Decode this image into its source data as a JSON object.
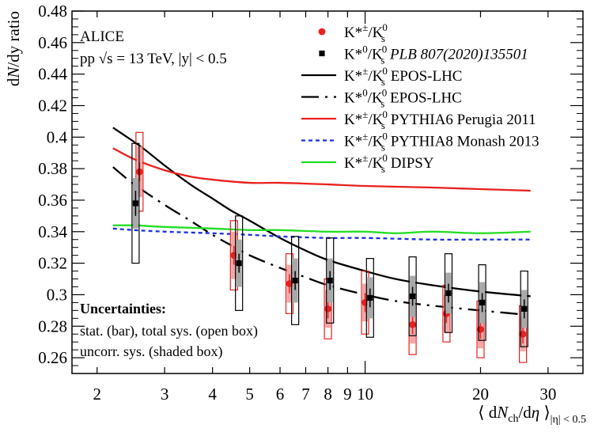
{
  "chart_data": {
    "type": "scatter",
    "xscale": "log",
    "xlim": [
      1.72,
      37.0
    ],
    "ylim": [
      0.25,
      0.48
    ],
    "ylabel": "dN/dy ratio",
    "xlabel": {
      "main": "⟨ dN",
      "sub1": "ch",
      "mid": "/dη ⟩",
      "sub2": "|η| < 0.5"
    },
    "xticks": [
      {
        "v": 2,
        "label": "2"
      },
      {
        "v": 3,
        "label": "3"
      },
      {
        "v": 4,
        "label": "4"
      },
      {
        "v": 5,
        "label": "5"
      },
      {
        "v": 6,
        "label": "6"
      },
      {
        "v": 7,
        "label": "7"
      },
      {
        "v": 8,
        "label": "8"
      },
      {
        "v": 9,
        "label": "9"
      },
      {
        "v": 10,
        "label": "10"
      },
      {
        "v": 20,
        "label": "20"
      },
      {
        "v": 30,
        "label": "30"
      }
    ],
    "xminor_ticks": [
      2,
      3,
      4,
      5,
      6,
      7,
      8,
      9,
      10,
      20,
      30
    ],
    "yticks": [
      0.26,
      0.28,
      0.3,
      0.32,
      0.34,
      0.36,
      0.38,
      0.4,
      0.42,
      0.44,
      0.46,
      0.48
    ],
    "ytick_labels": [
      "0.26",
      "0.28",
      "0.3",
      "0.32",
      "0.34",
      "0.36",
      "0.38",
      "0.4",
      "0.42",
      "0.44",
      "0.46",
      "0.48"
    ],
    "annotations": {
      "experiment": "ALICE",
      "system": "pp  √s = 13 TeV, |y| < 0.5",
      "unc_title": "Uncertainties:",
      "unc_line1": "stat. (bar), total sys. (open box)",
      "unc_line2": "uncorr. sys. (shaded box)"
    },
    "series": [
      {
        "name": "K*±/K0S",
        "kind": "data",
        "marker": "circle",
        "color": "#e8211f",
        "points": [
          {
            "x": 2.58,
            "y": 0.378,
            "stat": 0.006,
            "sys": 0.025,
            "unc": 0.016
          },
          {
            "x": 4.55,
            "y": 0.325,
            "stat": 0.006,
            "sys": 0.022,
            "unc": 0.015
          },
          {
            "x": 6.35,
            "y": 0.307,
            "stat": 0.006,
            "sys": 0.019,
            "unc": 0.012
          },
          {
            "x": 8.0,
            "y": 0.291,
            "stat": 0.006,
            "sys": 0.019,
            "unc": 0.012
          },
          {
            "x": 10.0,
            "y": 0.295,
            "stat": 0.006,
            "sys": 0.02,
            "unc": 0.012
          },
          {
            "x": 13.3,
            "y": 0.281,
            "stat": 0.006,
            "sys": 0.019,
            "unc": 0.012
          },
          {
            "x": 16.3,
            "y": 0.288,
            "stat": 0.006,
            "sys": 0.018,
            "unc": 0.012
          },
          {
            "x": 20.0,
            "y": 0.278,
            "stat": 0.006,
            "sys": 0.018,
            "unc": 0.012
          },
          {
            "x": 25.8,
            "y": 0.275,
            "stat": 0.006,
            "sys": 0.018,
            "unc": 0.011
          }
        ]
      },
      {
        "name": "K*0/K0S",
        "reference": "PLB 807(2020)135501",
        "kind": "data",
        "marker": "square",
        "color": "#000000",
        "points": [
          {
            "x": 2.52,
            "y": 0.358,
            "stat": 0.008,
            "sys": 0.038,
            "unc": 0.016
          },
          {
            "x": 4.69,
            "y": 0.32,
            "stat": 0.006,
            "sys": 0.03,
            "unc": 0.015
          },
          {
            "x": 6.57,
            "y": 0.309,
            "stat": 0.006,
            "sys": 0.028,
            "unc": 0.014
          },
          {
            "x": 8.1,
            "y": 0.309,
            "stat": 0.006,
            "sys": 0.027,
            "unc": 0.014
          },
          {
            "x": 10.3,
            "y": 0.298,
            "stat": 0.006,
            "sys": 0.025,
            "unc": 0.013
          },
          {
            "x": 13.3,
            "y": 0.299,
            "stat": 0.006,
            "sys": 0.025,
            "unc": 0.013
          },
          {
            "x": 16.5,
            "y": 0.301,
            "stat": 0.006,
            "sys": 0.025,
            "unc": 0.013
          },
          {
            "x": 20.2,
            "y": 0.295,
            "stat": 0.006,
            "sys": 0.024,
            "unc": 0.013
          },
          {
            "x": 26.0,
            "y": 0.291,
            "stat": 0.006,
            "sys": 0.024,
            "unc": 0.012
          }
        ]
      },
      {
        "name": "K*±/K0S EPOS-LHC",
        "kind": "curve",
        "color": "#000000",
        "dash": "solid",
        "x": [
          2.2,
          2.6,
          3.0,
          3.5,
          4.0,
          4.5,
          5.0,
          6.0,
          7.0,
          8.0,
          10.0,
          12.0,
          15.0,
          20.0,
          27.0
        ],
        "y": [
          0.406,
          0.394,
          0.382,
          0.37,
          0.361,
          0.353,
          0.347,
          0.336,
          0.328,
          0.322,
          0.315,
          0.31,
          0.306,
          0.302,
          0.299
        ]
      },
      {
        "name": "K*0/K0S EPOS-LHC",
        "kind": "curve",
        "color": "#000000",
        "dash": "dashdot",
        "x": [
          2.2,
          2.5,
          3.0,
          3.5,
          4.0,
          4.5,
          5.0,
          6.0,
          7.0,
          8.0,
          10.0,
          12.0,
          15.0,
          20.0,
          27.0
        ],
        "y": [
          0.381,
          0.37,
          0.357,
          0.347,
          0.338,
          0.331,
          0.325,
          0.317,
          0.311,
          0.306,
          0.3,
          0.296,
          0.293,
          0.29,
          0.287
        ]
      },
      {
        "name": "K*±/K0S PYTHIA6 Perugia 2011",
        "kind": "curve",
        "color": "#e8211f",
        "dash": "solid",
        "x": [
          2.2,
          2.5,
          3.0,
          3.5,
          4.0,
          5.0,
          6.0,
          8.0,
          10.0,
          15.0,
          20.0,
          27.0
        ],
        "y": [
          0.393,
          0.386,
          0.379,
          0.375,
          0.373,
          0.371,
          0.371,
          0.37,
          0.369,
          0.368,
          0.367,
          0.366
        ]
      },
      {
        "name": "K*±/K0S PYTHIA8 Monash 2013",
        "kind": "curve",
        "color": "#1a2fe0",
        "dash": "dotted",
        "x": [
          2.2,
          2.5,
          3.0,
          4.0,
          5.0,
          6.0,
          8.0,
          10.0,
          15.0,
          20.0,
          27.0
        ],
        "y": [
          0.342,
          0.341,
          0.34,
          0.339,
          0.338,
          0.337,
          0.336,
          0.336,
          0.335,
          0.335,
          0.335
        ]
      },
      {
        "name": "K*±/K0S DIPSY",
        "kind": "curve",
        "color": "#22dd22",
        "dash": "solid",
        "x": [
          2.2,
          2.5,
          3.0,
          4.0,
          5.0,
          6.0,
          8.0,
          10.0,
          12.0,
          15.0,
          20.0,
          27.0
        ],
        "y": [
          0.344,
          0.344,
          0.343,
          0.342,
          0.341,
          0.341,
          0.34,
          0.34,
          0.339,
          0.34,
          0.339,
          0.34
        ]
      }
    ],
    "legend": {
      "placement": "top-right",
      "entries": [
        {
          "series": 0,
          "label": "K*±/K0S",
          "num": "K*",
          "sup": "±",
          "den": "K",
          "sub": "s",
          "densup": "0",
          "ref": ""
        },
        {
          "series": 1,
          "label": "K*0/K0S PLB 807(2020)135501",
          "num": "K*",
          "sup": "0",
          "den": "K",
          "sub": "s",
          "densup": "0",
          "ref": "PLB 807(2020)135501"
        },
        {
          "series": 2,
          "label": "K*±/K0S EPOS-LHC",
          "num": "K*",
          "sup": "±",
          "den": "K",
          "sub": "s",
          "densup": "0",
          "ref": "EPOS-LHC"
        },
        {
          "series": 3,
          "label": "K*0/K0S EPOS-LHC",
          "num": "K*",
          "sup": "0",
          "den": "K",
          "sub": "s",
          "densup": "0",
          "ref": "EPOS-LHC"
        },
        {
          "series": 4,
          "label": "K*±/K0S PYTHIA6 Perugia 2011",
          "num": "K*",
          "sup": "±",
          "den": "K",
          "sub": "s",
          "densup": "0",
          "ref": "PYTHIA6 Perugia 2011"
        },
        {
          "series": 5,
          "label": "K*±/K0S PYTHIA8 Monash 2013",
          "num": "K*",
          "sup": "±",
          "den": "K",
          "sub": "s",
          "densup": "0",
          "ref": "PYTHIA8 Monash 2013"
        },
        {
          "series": 6,
          "label": "K*±/K0S DIPSY",
          "num": "K*",
          "sup": "±",
          "den": "K",
          "sub": "s",
          "densup": "0",
          "ref": "DIPSY"
        }
      ]
    }
  }
}
